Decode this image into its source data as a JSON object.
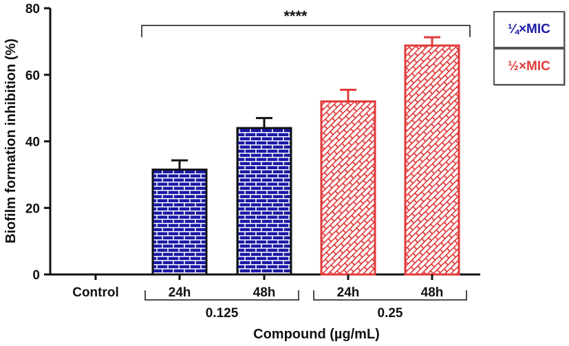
{
  "chart_data": {
    "type": "bar",
    "title": "",
    "xlabel": "Compound (µg/mL)",
    "ylabel": "Biofilm formation inhibition (%)",
    "ylim": [
      0,
      80
    ],
    "yticks": [
      "0",
      "20",
      "40",
      "60",
      "80"
    ],
    "categories": [
      "Control",
      "24h",
      "48h",
      "24h",
      "48h"
    ],
    "groups": [
      {
        "label": "0.125",
        "categories": [
          1,
          2
        ]
      },
      {
        "label": "0.25",
        "categories": [
          3,
          4
        ]
      }
    ],
    "bars": [
      {
        "category": "Control",
        "value": 0,
        "error": 0,
        "series": "none"
      },
      {
        "category": "24h",
        "value": 31.5,
        "error": 2.8,
        "series": "¼×MIC"
      },
      {
        "category": "48h",
        "value": 44.0,
        "error": 3.0,
        "series": "¼×MIC"
      },
      {
        "category": "24h",
        "value": 52.0,
        "error": 3.5,
        "series": "½×MIC"
      },
      {
        "category": "48h",
        "value": 68.8,
        "error": 2.5,
        "series": "½×MIC"
      }
    ],
    "significance": {
      "label": "****",
      "from_category": 1,
      "to_category": 4
    },
    "legend": [
      {
        "label": "¼×MIC",
        "color": "#1a1aa6",
        "pattern": "brick"
      },
      {
        "label": "½×MIC",
        "color": "#e03a3a",
        "pattern": "diagonal-brick"
      }
    ],
    "legend_position": "top-right"
  }
}
